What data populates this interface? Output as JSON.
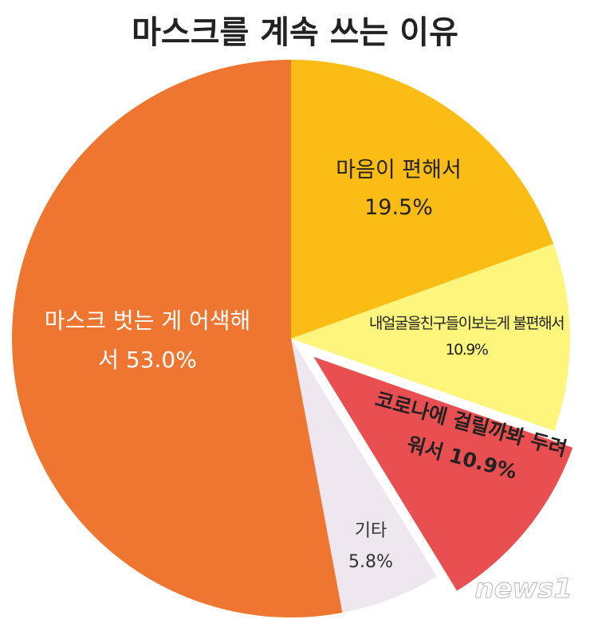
{
  "chart_data": {
    "type": "pie",
    "title": "마스크를 계속 쓰는 이유",
    "categories": [
      "마음이 편해서",
      "내얼굴을친구들이보는게 불편해서",
      "코로나에 걸릴까봐 두려워서",
      "기타",
      "마스크 벗는 게 어색해서"
    ],
    "values": [
      19.5,
      10.9,
      10.9,
      5.8,
      53.0
    ],
    "value_labels": [
      "19.5%",
      "10.9%",
      "10.9%",
      "5.8%",
      "53.0%"
    ],
    "colors": [
      "#fbbd13",
      "#fdf57c",
      "#e94f50",
      "#efe7ef",
      "#ee7631"
    ],
    "exploded_slice": 2,
    "watermark": "news1"
  }
}
